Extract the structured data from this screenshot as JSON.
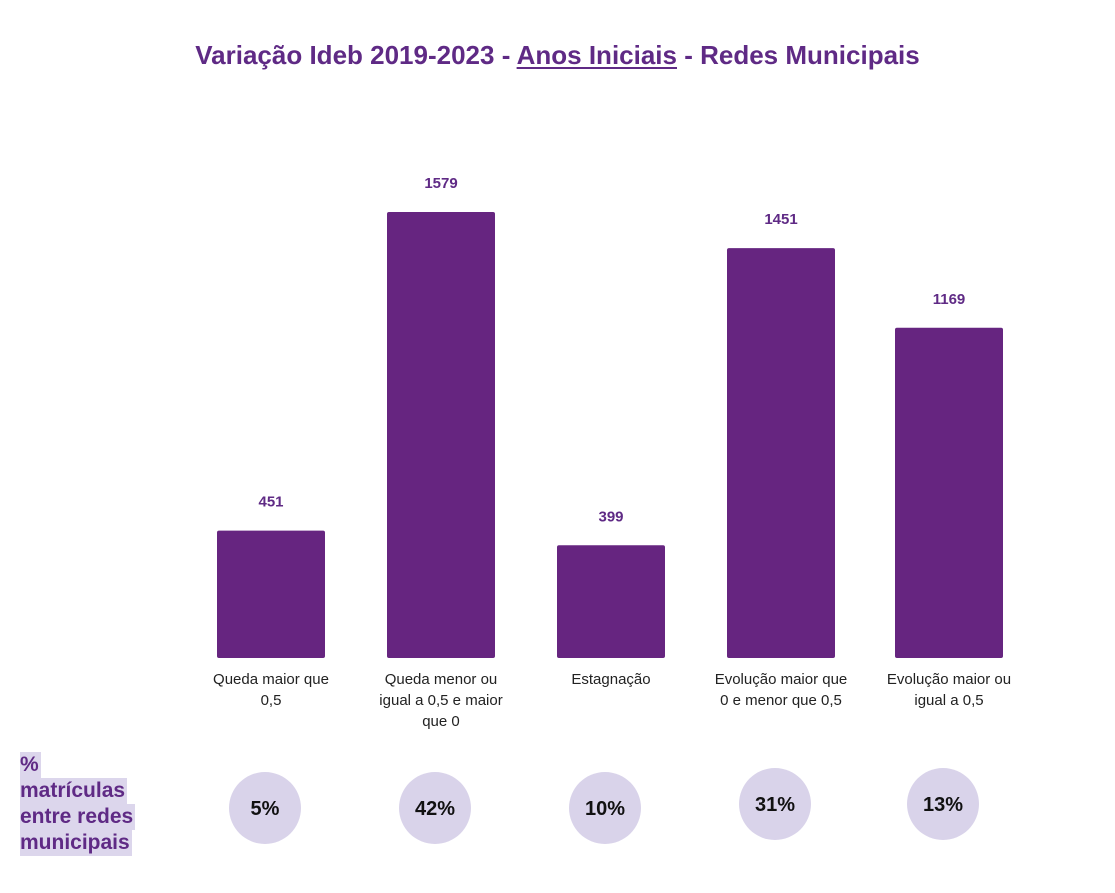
{
  "title": {
    "prefix": "Variação Ideb 2019-2023 - ",
    "underlined": "Anos Iniciais",
    "suffix": " - Redes Municipais"
  },
  "chart_data": {
    "type": "bar",
    "title": "Variação Ideb 2019-2023 - Anos Iniciais - Redes Municipais",
    "categories": [
      [
        "Queda maior que",
        "0,5"
      ],
      [
        "Queda menor ou",
        "igual a 0,5 e maior",
        "que 0"
      ],
      [
        "Estagnação"
      ],
      [
        "Evolução maior que",
        "0 e menor que 0,5"
      ],
      [
        "Evolução maior ou",
        "igual a 0,5"
      ]
    ],
    "values": [
      451,
      1579,
      399,
      1451,
      1169
    ],
    "value_labels": [
      "451",
      "1579",
      "399",
      "1451",
      "1169"
    ],
    "percent_labels": [
      "5%",
      "42%",
      "10%",
      "31%",
      "13%"
    ],
    "ylim": [
      0,
      1579
    ],
    "grid": false,
    "bar_color": "#662580"
  },
  "side_label": [
    "%",
    "matrículas",
    "entre redes",
    "municipais"
  ],
  "colors": {
    "title": "#5f2a85",
    "bar": "#662580",
    "circle": "#d9d3ea"
  }
}
